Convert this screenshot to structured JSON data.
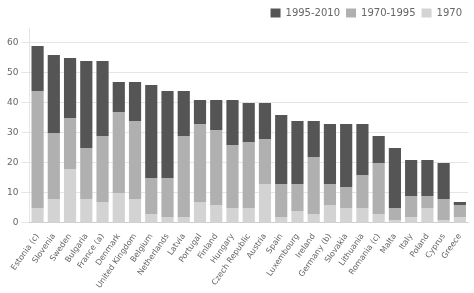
{
  "chart_data": {
    "type": "bar",
    "stacked": true,
    "categories": [
      "Estonia (c)",
      "Slovenia",
      "Sweden",
      "Bulgaria",
      "France (a)",
      "Denmark",
      "United Kingdom",
      "Belgium",
      "Netherlands",
      "Latvia",
      "Portugal",
      "Finland",
      "Hungary",
      "Czech Republic",
      "Austria",
      "Spain",
      "Luxembourg",
      "Ireland",
      "Germany (b)",
      "Slovakia",
      "Lithuania",
      "Romania (c)",
      "Malta",
      "Italy",
      "Poland",
      "Cyprus",
      "Greece"
    ],
    "series": [
      {
        "name": "1970",
        "color": "#d3d3d3",
        "values": [
          5,
          8,
          18,
          8,
          7,
          10,
          8,
          3,
          2,
          2,
          7,
          6,
          5,
          5,
          13,
          2,
          4,
          3,
          6,
          5,
          5,
          3,
          1,
          2,
          5,
          1,
          2
        ]
      },
      {
        "name": "1970-1995",
        "color": "#b0b0b0",
        "values": [
          39,
          22,
          17,
          17,
          22,
          27,
          26,
          12,
          13,
          27,
          26,
          25,
          21,
          22,
          15,
          11,
          9,
          19,
          7,
          7,
          11,
          17,
          4,
          7,
          4,
          7,
          4
        ]
      },
      {
        "name": "1995-2010",
        "color": "#555555",
        "values": [
          15,
          26,
          20,
          29,
          25,
          10,
          13,
          31,
          29,
          15,
          8,
          10,
          15,
          13,
          12,
          23,
          21,
          12,
          20,
          21,
          17,
          9,
          20,
          12,
          12,
          12,
          1
        ]
      }
    ],
    "ylim": [
      0,
      65
    ],
    "yticks": [
      0,
      10,
      20,
      30,
      40,
      50,
      60
    ],
    "grid": true,
    "legend": "upper right"
  }
}
